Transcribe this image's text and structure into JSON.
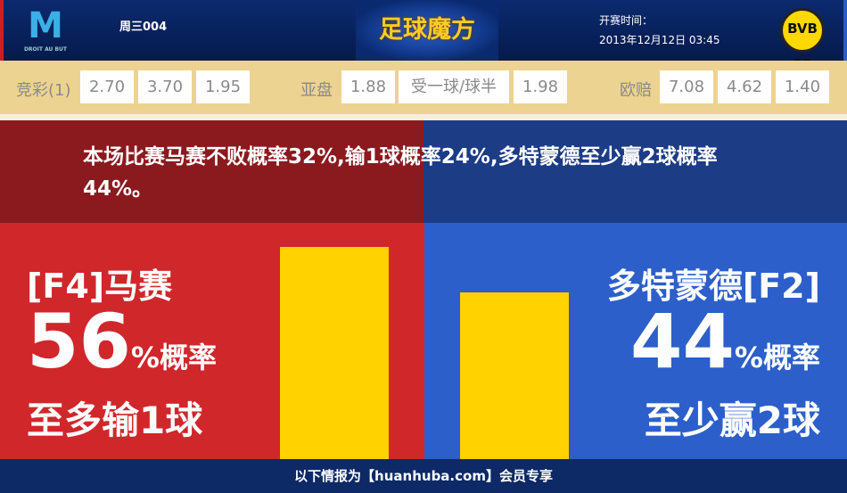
{
  "header": {
    "home_logo_text": "M",
    "home_logo_motto": "DROIT AU BUT",
    "match_no": "周三004",
    "brand": "足球魔方",
    "kickoff_label": "开赛时间：",
    "kickoff_time": "2013年12月12日 03:45",
    "away_logo_text": "BVB 09"
  },
  "odds": {
    "jc_label": "竞彩(1)",
    "jc": [
      "2.70",
      "3.70",
      "1.95"
    ],
    "ah_label": "亚盘",
    "ah": [
      "1.88",
      "受一球/球半",
      "1.98"
    ],
    "eu_label": "欧赔",
    "eu": [
      "7.08",
      "4.62",
      "1.40"
    ]
  },
  "summary": "本场比赛马赛不败概率32%,输1球概率24%,多特蒙德至少赢2球概率44%。",
  "home": {
    "name": "[F4]马赛",
    "percent": "56",
    "percent_suffix": "%概率",
    "outcome": "至多输1球",
    "value": 56
  },
  "away": {
    "name": "多特蒙德[F2]",
    "percent": "44",
    "percent_suffix": "%概率",
    "outcome": "至少赢2球",
    "value": 44
  },
  "footer": "以下情报为【huanhuba.com】会员专享",
  "colors": {
    "home": "#d0272b",
    "away": "#2c5fca",
    "bar": "#ffd200"
  }
}
